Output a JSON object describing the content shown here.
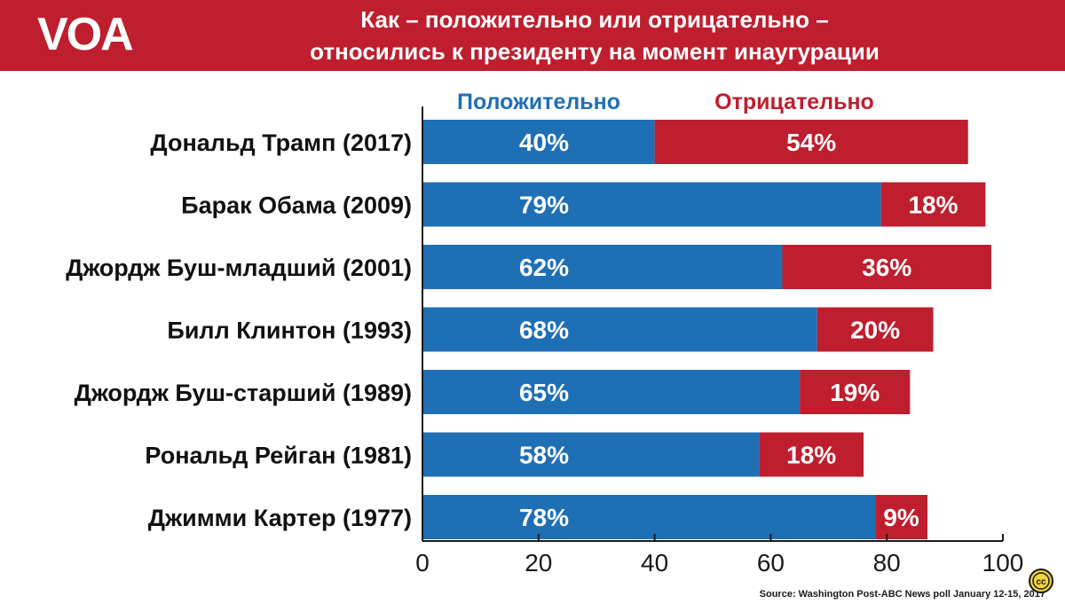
{
  "header": {
    "logo": "VOA",
    "title_line1": "Как – положительно или отрицательно –",
    "title_line2": "относились к президенту на момент инаугурации"
  },
  "colors": {
    "header_bg": "#bf1e2e",
    "positive": "#1f6fb5",
    "negative": "#bf1e2e",
    "text": "#111111"
  },
  "chart_data": {
    "type": "bar",
    "orientation": "horizontal",
    "stacked": true,
    "categories": [
      "Дональд Трамп (2017)",
      "Барак Обама (2009)",
      "Джордж Буш-младший (2001)",
      "Билл Клинтон (1993)",
      "Джордж Буш-старший (1989)",
      "Рональд Рейган (1981)",
      "Джимми Картер (1977)"
    ],
    "series": [
      {
        "name": "Положительно",
        "values": [
          40,
          79,
          62,
          68,
          65,
          58,
          78
        ],
        "labels": [
          "40%",
          "79%",
          "62%",
          "68%",
          "65%",
          "58%",
          "78%"
        ]
      },
      {
        "name": "Отрицательно",
        "values": [
          54,
          18,
          36,
          20,
          19,
          18,
          9
        ],
        "labels": [
          "54%",
          "18%",
          "36%",
          "20%",
          "19%",
          "18%",
          "9%"
        ]
      }
    ],
    "xlim": [
      0,
      100
    ],
    "xticks": [
      "0",
      "20",
      "40",
      "60",
      "80",
      "100"
    ],
    "grid": false,
    "legend": "top"
  },
  "footer": {
    "source": "Source: Washington Post-ABC News poll January 12-15, 2017",
    "icon": "creative-commons-icon"
  }
}
